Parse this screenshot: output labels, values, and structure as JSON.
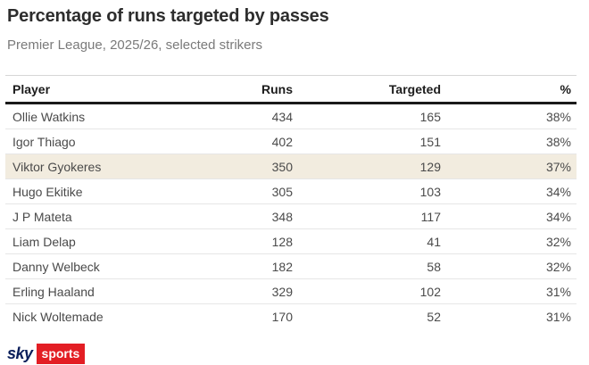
{
  "chart_data": {
    "type": "table",
    "title": "Percentage of runs targeted by passes",
    "subtitle": "Premier League, 2025/26, selected strikers",
    "columns": [
      "Player",
      "Runs",
      "Targeted",
      "%"
    ],
    "rows": [
      [
        "Ollie Watkins",
        434,
        165,
        "38%"
      ],
      [
        "Igor Thiago",
        402,
        151,
        "38%"
      ],
      [
        "Viktor Gyokeres",
        350,
        129,
        "37%"
      ],
      [
        "Hugo Ekitike",
        305,
        103,
        "34%"
      ],
      [
        "J P Mateta",
        348,
        117,
        "34%"
      ],
      [
        "Liam Delap",
        128,
        41,
        "32%"
      ],
      [
        "Danny Welbeck",
        182,
        58,
        "32%"
      ],
      [
        "Erling Haaland",
        329,
        102,
        "31%"
      ],
      [
        "Nick Woltemade",
        170,
        52,
        "31%"
      ]
    ],
    "highlight_row_index": 2,
    "highlight_color": "#f2ecdf",
    "layout": {
      "grid": false,
      "legend": "none",
      "column_alignment": [
        "left",
        "right",
        "right",
        "right"
      ]
    }
  },
  "footer": {
    "logo": {
      "sky": "sky",
      "sports": "sports"
    },
    "colors": {
      "sky_navy": "#0a1e5a",
      "sports_red": "#e31e24"
    }
  },
  "colors": {
    "title_text": "#2d2d2d",
    "subtitle_text": "#7a7a7a",
    "header_rule": "#1a1a1a",
    "row_divider": "#e6e6e6",
    "body_text": "#4a4a4a",
    "background": "#ffffff"
  }
}
